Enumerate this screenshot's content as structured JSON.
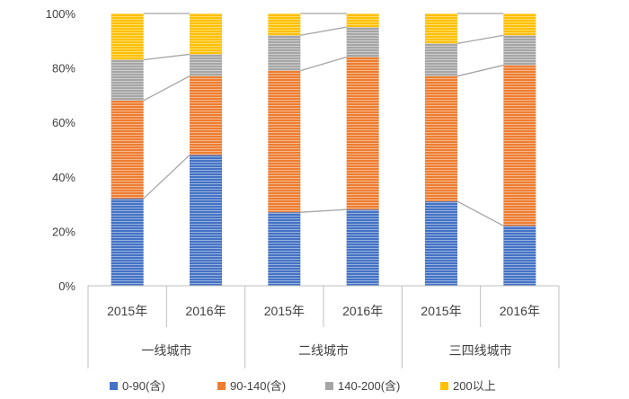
{
  "chart_data": {
    "type": "bar",
    "stacked": true,
    "percent": true,
    "title": "",
    "xlabel": "",
    "ylabel": "",
    "ylim": [
      0,
      100
    ],
    "yticks": [
      "0%",
      "20%",
      "40%",
      "60%",
      "80%",
      "100%"
    ],
    "groups": [
      {
        "name": "一线城市",
        "categories": [
          "2015年",
          "2016年"
        ]
      },
      {
        "name": "二线城市",
        "categories": [
          "2015年",
          "2016年"
        ]
      },
      {
        "name": "三四线城市",
        "categories": [
          "2015年",
          "2016年"
        ]
      }
    ],
    "series": [
      {
        "name": "0-90(含)",
        "color": "#4472C4",
        "values": [
          32,
          48,
          27,
          28,
          31,
          22
        ]
      },
      {
        "name": "90-140(含)",
        "color": "#ED7D31",
        "values": [
          36,
          29,
          52,
          56,
          46,
          59
        ]
      },
      {
        "name": "140-200(含)",
        "color": "#A5A5A5",
        "values": [
          15,
          8,
          13,
          11,
          12,
          11
        ]
      },
      {
        "name": "200以上",
        "color": "#FFC000",
        "values": [
          17,
          15,
          8,
          5,
          11,
          8
        ]
      }
    ],
    "legend_position": "bottom",
    "grid": false,
    "series_connector_lines": true
  }
}
